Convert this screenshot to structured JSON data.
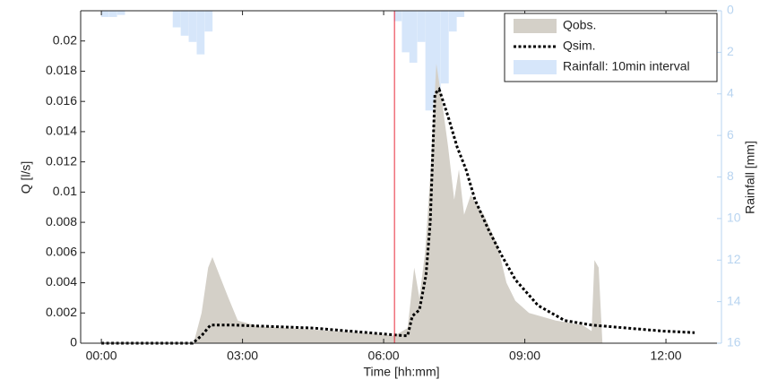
{
  "chart_data": {
    "type": "hydrograph",
    "xlabel": "Time [hh:mm]",
    "ylabel": "Q [l/s]",
    "y2label": "Rainfall [mm]",
    "xlim": [
      -0.44,
      13.18
    ],
    "xticks": [
      {
        "value": 0,
        "label": "00:00"
      },
      {
        "value": 3,
        "label": "03:00"
      },
      {
        "value": 6,
        "label": "06:00"
      },
      {
        "value": 9,
        "label": "09:00"
      },
      {
        "value": 12,
        "label": "12:00"
      }
    ],
    "ylim": [
      0,
      0.022
    ],
    "yticks": [
      0,
      0.002,
      0.004,
      0.006,
      0.008,
      0.01,
      0.012,
      0.014,
      0.016,
      0.018,
      0.02
    ],
    "y2lim": [
      0,
      16
    ],
    "y2_inverted": true,
    "y2ticks": [
      0,
      2,
      4,
      6,
      8,
      10,
      12,
      14,
      16
    ],
    "legend": "upper right",
    "vline": {
      "x": 6.23,
      "color": "#e8283a"
    },
    "series": [
      {
        "name": "Qobs.",
        "kind": "area",
        "color": "#d4d0c8",
        "x": [
          0,
          1.96,
          2.13,
          2.27,
          2.36,
          2.51,
          2.7,
          2.9,
          3.37,
          4.51,
          5.47,
          6.23,
          6.51,
          6.65,
          6.76,
          6.88,
          6.99,
          7.12,
          7.24,
          7.37,
          7.5,
          7.6,
          7.71,
          7.85,
          8.13,
          8.42,
          8.61,
          8.8,
          9.09,
          9.66,
          10.23,
          10.42,
          10.48,
          10.57,
          10.65
        ],
        "values": [
          0,
          0,
          0.002,
          0.005,
          0.0057,
          0.0045,
          0.003,
          0.0015,
          0.0011,
          0.0009,
          0.0007,
          0.0005,
          0.001,
          0.005,
          0.003,
          0.006,
          0.011,
          0.0185,
          0.016,
          0.013,
          0.0095,
          0.0115,
          0.0085,
          0.0098,
          0.0085,
          0.0065,
          0.004,
          0.0028,
          0.002,
          0.0015,
          0.0012,
          0.0008,
          0.0055,
          0.005,
          0
        ]
      },
      {
        "name": "Qsim.",
        "kind": "line",
        "color": "#000000",
        "x": [
          0,
          1.94,
          2.13,
          2.32,
          2.8,
          4.51,
          6.42,
          6.51,
          6.61,
          6.76,
          6.9,
          6.99,
          7.09,
          7.18,
          7.37,
          7.56,
          7.75,
          7.94,
          8.23,
          8.51,
          8.8,
          9.28,
          9.85,
          10.42,
          11.18,
          11.94,
          12.61
        ],
        "values": [
          0,
          0,
          0.0005,
          0.0012,
          0.0012,
          0.001,
          0.0005,
          0.0005,
          0.0018,
          0.0022,
          0.0045,
          0.008,
          0.0165,
          0.0168,
          0.015,
          0.013,
          0.0115,
          0.0095,
          0.0075,
          0.0058,
          0.0042,
          0.0025,
          0.0015,
          0.0012,
          0.001,
          0.0008,
          0.0007
        ]
      },
      {
        "name": "Rainfall: 10min interval",
        "kind": "bar",
        "axis": "y2",
        "color": "#d6e6fa",
        "x": [
          0.08,
          0.25,
          0.42,
          1.6,
          1.77,
          1.94,
          2.11,
          2.28,
          6.3,
          6.47,
          6.63,
          6.8,
          6.97,
          7.13,
          7.3,
          7.47,
          7.63
        ],
        "values": [
          0.3,
          0.3,
          0.2,
          0.8,
          1.2,
          1.5,
          2.1,
          1.0,
          0.5,
          2.0,
          2.5,
          1.5,
          4.8,
          4.4,
          3.5,
          1.0,
          0.3
        ]
      }
    ]
  }
}
